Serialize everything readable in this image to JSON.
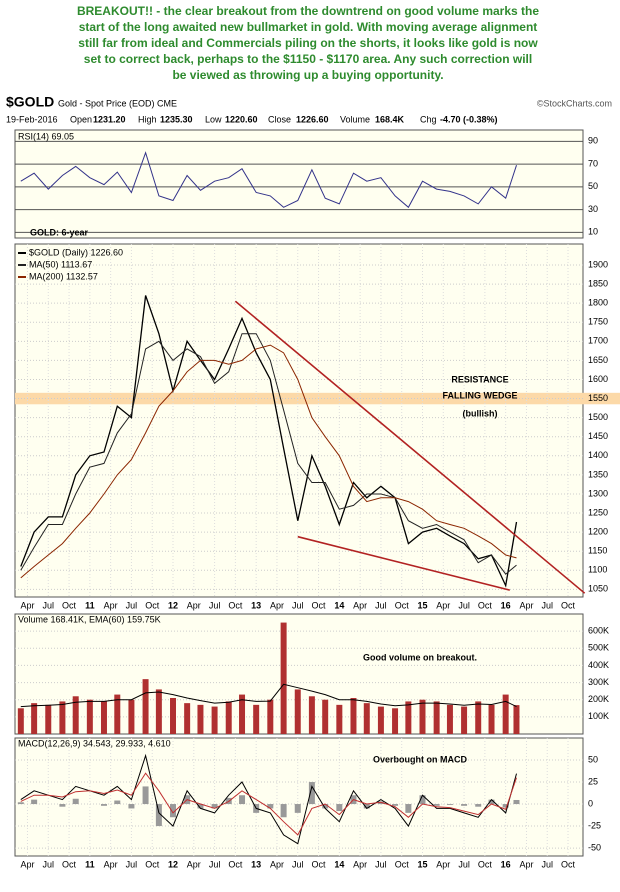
{
  "caption": [
    "BREAKOUT!! - the clear breakout from the downtrend on good volume marks the",
    "start of the long awaited new bullmarket in gold. With moving average alignment",
    "still far from ideal and Commercials piling on the shorts, it  looks like gold is now",
    "set to correct back, perhaps to the $1150 - $1170 area. Any such correction will",
    "be viewed as throwing up a buying opportunity."
  ],
  "header": {
    "symbol": "$GOLD",
    "description": "Gold - Spot Price (EOD) CME",
    "credit": "©StockCharts.com",
    "date": "19-Feb-2016",
    "fields": [
      {
        "label": "Open",
        "value": "1231.20"
      },
      {
        "label": "High",
        "value": "1235.30"
      },
      {
        "label": "Low",
        "value": "1220.60"
      },
      {
        "label": "Close",
        "value": "1226.60"
      },
      {
        "label": "Volume",
        "value": "168.4K"
      },
      {
        "label": "Chg",
        "value": "-4.70 (-0.38%)"
      }
    ]
  },
  "chart_data": [
    {
      "type": "line",
      "title": "RSI(14) 69.05",
      "xlim": [
        2010.1,
        2016.93
      ],
      "ylim": [
        5,
        100
      ],
      "yticks": [
        10,
        30,
        50,
        70,
        90
      ],
      "x": [
        2010.17,
        2010.33,
        2010.5,
        2010.67,
        2010.83,
        2011,
        2011.17,
        2011.33,
        2011.5,
        2011.67,
        2011.83,
        2012,
        2012.17,
        2012.33,
        2012.5,
        2012.67,
        2012.83,
        2013,
        2013.17,
        2013.33,
        2013.5,
        2013.67,
        2013.83,
        2014,
        2014.17,
        2014.33,
        2014.5,
        2014.67,
        2014.83,
        2015,
        2015.17,
        2015.33,
        2015.5,
        2015.67,
        2015.83,
        2016,
        2016.13
      ],
      "series": [
        {
          "color": "#33338a",
          "values": [
            55,
            62,
            48,
            60,
            68,
            58,
            52,
            63,
            45,
            80,
            42,
            38,
            60,
            47,
            55,
            58,
            66,
            45,
            42,
            32,
            38,
            65,
            40,
            35,
            62,
            55,
            58,
            42,
            32,
            55,
            48,
            46,
            42,
            35,
            50,
            40,
            69.05
          ]
        }
      ]
    },
    {
      "type": "line",
      "title": "GOLD: 6-year",
      "xlim": [
        2010.1,
        2016.93
      ],
      "ylim": [
        1030,
        1955
      ],
      "yticks": [
        1050,
        1100,
        1150,
        1200,
        1250,
        1300,
        1350,
        1400,
        1450,
        1500,
        1550,
        1600,
        1650,
        1700,
        1750,
        1800,
        1850,
        1900
      ],
      "xticks": [
        {
          "value": 2010.25,
          "label": "Apr"
        },
        {
          "value": 2010.5,
          "label": "Jul"
        },
        {
          "value": 2010.75,
          "label": "Oct"
        },
        {
          "value": 2011,
          "label": "11"
        },
        {
          "value": 2011.25,
          "label": "Apr"
        },
        {
          "value": 2011.5,
          "label": "Jul"
        },
        {
          "value": 2011.75,
          "label": "Oct"
        },
        {
          "value": 2012,
          "label": "12"
        },
        {
          "value": 2012.25,
          "label": "Apr"
        },
        {
          "value": 2012.5,
          "label": "Jul"
        },
        {
          "value": 2012.75,
          "label": "Oct"
        },
        {
          "value": 2013,
          "label": "13"
        },
        {
          "value": 2013.25,
          "label": "Apr"
        },
        {
          "value": 2013.5,
          "label": "Jul"
        },
        {
          "value": 2013.75,
          "label": "Oct"
        },
        {
          "value": 2014,
          "label": "14"
        },
        {
          "value": 2014.25,
          "label": "Apr"
        },
        {
          "value": 2014.5,
          "label": "Jul"
        },
        {
          "value": 2014.75,
          "label": "Oct"
        },
        {
          "value": 2015,
          "label": "15"
        },
        {
          "value": 2015.25,
          "label": "Apr"
        },
        {
          "value": 2015.5,
          "label": "Jul"
        },
        {
          "value": 2015.75,
          "label": "Oct"
        },
        {
          "value": 2016,
          "label": "16"
        },
        {
          "value": 2016.25,
          "label": "Apr"
        },
        {
          "value": 2016.5,
          "label": "Jul"
        },
        {
          "value": 2016.75,
          "label": "Oct"
        }
      ],
      "x": [
        2010.17,
        2010.33,
        2010.5,
        2010.67,
        2010.83,
        2011,
        2011.17,
        2011.33,
        2011.5,
        2011.67,
        2011.83,
        2012,
        2012.17,
        2012.33,
        2012.5,
        2012.67,
        2012.83,
        2013,
        2013.17,
        2013.33,
        2013.5,
        2013.67,
        2013.83,
        2014,
        2014.17,
        2014.33,
        2014.5,
        2014.67,
        2014.83,
        2015,
        2015.17,
        2015.33,
        2015.5,
        2015.67,
        2015.83,
        2016,
        2016.13
      ],
      "series": [
        {
          "name": "$GOLD (Daily) 1226.60",
          "color": "#000000",
          "values": [
            1110,
            1200,
            1240,
            1240,
            1350,
            1400,
            1410,
            1530,
            1500,
            1820,
            1720,
            1570,
            1700,
            1650,
            1600,
            1680,
            1760,
            1670,
            1600,
            1420,
            1230,
            1400,
            1320,
            1220,
            1330,
            1290,
            1320,
            1290,
            1170,
            1200,
            1210,
            1190,
            1170,
            1130,
            1140,
            1060,
            1226.6
          ]
        },
        {
          "name": "MA(50) 1113.67",
          "color": "#222222",
          "values": [
            1100,
            1160,
            1220,
            1220,
            1300,
            1370,
            1380,
            1460,
            1510,
            1680,
            1700,
            1650,
            1680,
            1660,
            1590,
            1620,
            1720,
            1720,
            1650,
            1520,
            1380,
            1330,
            1330,
            1260,
            1270,
            1300,
            1300,
            1290,
            1230,
            1210,
            1220,
            1200,
            1180,
            1120,
            1140,
            1090,
            1113.67
          ]
        },
        {
          "name": "MA(200) 1132.57",
          "color": "#8b2500",
          "values": [
            1080,
            1110,
            1140,
            1170,
            1210,
            1250,
            1300,
            1350,
            1390,
            1460,
            1530,
            1570,
            1620,
            1650,
            1650,
            1640,
            1650,
            1680,
            1690,
            1670,
            1600,
            1500,
            1450,
            1400,
            1320,
            1280,
            1290,
            1290,
            1280,
            1260,
            1230,
            1220,
            1210,
            1190,
            1170,
            1140,
            1132.57
          ]
        }
      ],
      "resistance_band": [
        1535,
        1565
      ],
      "band_color": "#fcd9a8",
      "trendlines": [
        {
          "x": [
            2012.75,
            2016.95
          ],
          "values": [
            1805,
            1040
          ]
        },
        {
          "x": [
            2013.5,
            2016.05
          ],
          "values": [
            1188,
            1048
          ]
        }
      ],
      "trend_color": "#b22222",
      "annotations": [
        {
          "text": "RESISTANCE",
          "color": "#333333"
        },
        {
          "text": "FALLING WEDGE",
          "color": "#2e8b2e"
        },
        {
          "text": "(bullish)",
          "color": "#2e8b2e"
        }
      ]
    },
    {
      "type": "bar",
      "title": "Volume 168.41K, EMA(60) 159.75K",
      "xlim": [
        2010.1,
        2016.93
      ],
      "ylim": [
        0,
        700000
      ],
      "yticks": [
        {
          "value": 100000,
          "label": "100K"
        },
        {
          "value": 200000,
          "label": "200K"
        },
        {
          "value": 300000,
          "label": "300K"
        },
        {
          "value": 400000,
          "label": "400K"
        },
        {
          "value": 500000,
          "label": "500K"
        },
        {
          "value": 600000,
          "label": "600K"
        }
      ],
      "x": [
        2010.17,
        2010.33,
        2010.5,
        2010.67,
        2010.83,
        2011,
        2011.17,
        2011.33,
        2011.5,
        2011.67,
        2011.83,
        2012,
        2012.17,
        2012.33,
        2012.5,
        2012.67,
        2012.83,
        2013,
        2013.17,
        2013.33,
        2013.5,
        2013.67,
        2013.83,
        2014,
        2014.17,
        2014.33,
        2014.5,
        2014.67,
        2014.83,
        2015,
        2015.17,
        2015.33,
        2015.5,
        2015.67,
        2015.83,
        2016,
        2016.13
      ],
      "series": [
        {
          "style": "bar",
          "color": "#b03030",
          "values": [
            150000,
            180000,
            170000,
            190000,
            220000,
            200000,
            190000,
            230000,
            200000,
            320000,
            260000,
            210000,
            180000,
            170000,
            160000,
            190000,
            230000,
            170000,
            200000,
            650000,
            260000,
            220000,
            200000,
            170000,
            210000,
            180000,
            160000,
            150000,
            190000,
            200000,
            190000,
            170000,
            160000,
            190000,
            170000,
            230000,
            168410
          ]
        },
        {
          "style": "line",
          "color": "#000000",
          "values": [
            160000,
            165000,
            168000,
            172000,
            185000,
            190000,
            190000,
            200000,
            200000,
            240000,
            245000,
            230000,
            210000,
            195000,
            180000,
            185000,
            200000,
            190000,
            192000,
            290000,
            270000,
            250000,
            230000,
            200000,
            200000,
            190000,
            175000,
            165000,
            170000,
            180000,
            180000,
            175000,
            168000,
            175000,
            172000,
            190000,
            159750
          ]
        }
      ],
      "annotations": [
        {
          "text": "Good volume on breakout.",
          "color": "#2e8b2e"
        }
      ]
    },
    {
      "type": "line",
      "title": "MACD(12,26,9) 34.543, 29.933, 4.610",
      "xlim": [
        2010.1,
        2016.93
      ],
      "ylim": [
        -59,
        75
      ],
      "yticks": [
        -50,
        -25,
        0,
        25,
        50
      ],
      "xticks": [
        {
          "value": 2010.25,
          "label": "Apr"
        },
        {
          "value": 2010.5,
          "label": "Jul"
        },
        {
          "value": 2010.75,
          "label": "Oct"
        },
        {
          "value": 2011,
          "label": "11"
        },
        {
          "value": 2011.25,
          "label": "Apr"
        },
        {
          "value": 2011.5,
          "label": "Jul"
        },
        {
          "value": 2011.75,
          "label": "Oct"
        },
        {
          "value": 2012,
          "label": "12"
        },
        {
          "value": 2012.25,
          "label": "Apr"
        },
        {
          "value": 2012.5,
          "label": "Jul"
        },
        {
          "value": 2012.75,
          "label": "Oct"
        },
        {
          "value": 2013,
          "label": "13"
        },
        {
          "value": 2013.25,
          "label": "Apr"
        },
        {
          "value": 2013.5,
          "label": "Jul"
        },
        {
          "value": 2013.75,
          "label": "Oct"
        },
        {
          "value": 2014,
          "label": "14"
        },
        {
          "value": 2014.25,
          "label": "Apr"
        },
        {
          "value": 2014.5,
          "label": "Jul"
        },
        {
          "value": 2014.75,
          "label": "Oct"
        },
        {
          "value": 2015,
          "label": "15"
        },
        {
          "value": 2015.25,
          "label": "Apr"
        },
        {
          "value": 2015.5,
          "label": "Jul"
        },
        {
          "value": 2015.75,
          "label": "Oct"
        },
        {
          "value": 2016,
          "label": "16"
        },
        {
          "value": 2016.25,
          "label": "Apr"
        },
        {
          "value": 2016.5,
          "label": "Jul"
        },
        {
          "value": 2016.75,
          "label": "Oct"
        }
      ],
      "x": [
        2010.17,
        2010.33,
        2010.5,
        2010.67,
        2010.83,
        2011,
        2011.17,
        2011.33,
        2011.5,
        2011.67,
        2011.83,
        2012,
        2012.17,
        2012.33,
        2012.5,
        2012.67,
        2012.83,
        2013,
        2013.17,
        2013.33,
        2013.5,
        2013.67,
        2013.83,
        2014,
        2014.17,
        2014.33,
        2014.5,
        2014.67,
        2014.83,
        2015,
        2015.17,
        2015.33,
        2015.5,
        2015.67,
        2015.83,
        2016,
        2016.13
      ],
      "series": [
        {
          "style": "bar",
          "color": "#999999",
          "values": [
            2,
            5,
            0,
            -3,
            6,
            0,
            -2,
            4,
            -5,
            20,
            -25,
            -15,
            10,
            -5,
            -5,
            7,
            10,
            -10,
            -5,
            -15,
            -10,
            25,
            -5,
            -8,
            10,
            -5,
            3,
            -2,
            -10,
            10,
            -2,
            -1,
            -2,
            -3,
            5,
            -4,
            4.61
          ]
        },
        {
          "style": "line",
          "color": "#000000",
          "values": [
            5,
            15,
            10,
            5,
            20,
            15,
            10,
            20,
            5,
            55,
            -10,
            -25,
            15,
            -5,
            -10,
            10,
            25,
            -5,
            -10,
            -35,
            -45,
            20,
            -5,
            -20,
            15,
            -5,
            5,
            -5,
            -25,
            10,
            -5,
            -5,
            -10,
            -15,
            5,
            -10,
            34.543
          ]
        },
        {
          "style": "line",
          "color": "#c03030",
          "values": [
            3,
            10,
            10,
            8,
            14,
            15,
            12,
            16,
            10,
            35,
            15,
            -10,
            5,
            0,
            -5,
            3,
            15,
            5,
            -5,
            -20,
            -35,
            -5,
            0,
            -12,
            5,
            0,
            2,
            -3,
            -15,
            0,
            -3,
            -4,
            -8,
            -12,
            0,
            -6,
            29.933
          ]
        }
      ],
      "annotations": [
        {
          "text": "Overbought on MACD",
          "color": "#2e8b2e"
        }
      ]
    }
  ]
}
